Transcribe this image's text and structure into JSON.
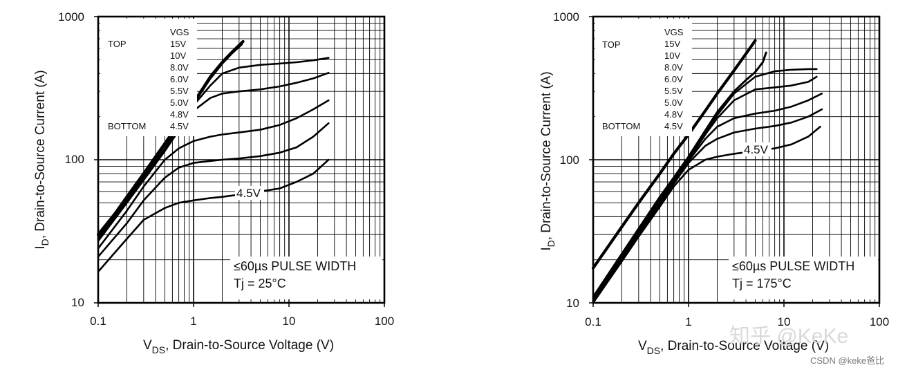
{
  "chart_data": [
    {
      "type": "line",
      "scale": "log-log",
      "xlim": [
        0.1,
        100
      ],
      "ylim": [
        10,
        1000
      ],
      "grid": true,
      "x_ticks": [
        "0.1",
        "1",
        "10",
        "100"
      ],
      "y_ticks": [
        "10",
        "100",
        "1000"
      ],
      "xlabel_main": "V",
      "xlabel_sub": "DS",
      "xlabel_rest": ", Drain-to-Source Voltage (V)",
      "ylabel_main": "I",
      "ylabel_sub": "D",
      "ylabel_rest": ", Drain-to-Source Current (A)",
      "legend": {
        "header": "VGS",
        "top_label": "TOP",
        "bottom_label": "BOTTOM",
        "entries": [
          "15V",
          "10V",
          "8.0V",
          "6.0V",
          "5.5V",
          "5.0V",
          "4.8V",
          "4.5V"
        ]
      },
      "annotation_line1": "≤60µs PULSE WIDTH",
      "annotation_line2": "Tj = 25°C",
      "curve_label": "4.5V",
      "series": [
        {
          "x": [
            0.1,
            0.15,
            0.2,
            0.3,
            0.5,
            0.7,
            1,
            1.5,
            2,
            2.5,
            3,
            3.3
          ],
          "y": [
            30,
            42,
            55,
            80,
            130,
            180,
            250,
            380,
            480,
            560,
            630,
            670
          ]
        },
        {
          "x": [
            0.1,
            0.15,
            0.2,
            0.3,
            0.5,
            0.7,
            1,
            1.5,
            2,
            2.5,
            3.2
          ],
          "y": [
            29,
            41,
            53,
            78,
            127,
            175,
            245,
            370,
            470,
            550,
            640
          ]
        },
        {
          "x": [
            0.1,
            0.2,
            0.3,
            0.5,
            0.7,
            1,
            1.5,
            2,
            3,
            5,
            8,
            12,
            18,
            26
          ],
          "y": [
            28,
            52,
            75,
            120,
            170,
            240,
            330,
            400,
            440,
            460,
            470,
            480,
            495,
            515
          ]
        },
        {
          "x": [
            0.1,
            0.2,
            0.3,
            0.5,
            0.7,
            1,
            1.5,
            2,
            3,
            5,
            8,
            12,
            18,
            26
          ],
          "y": [
            27,
            50,
            72,
            115,
            160,
            220,
            270,
            290,
            300,
            310,
            325,
            345,
            370,
            405
          ]
        },
        {
          "x": [
            0.1,
            0.2,
            0.3,
            0.5,
            0.7,
            1,
            1.5,
            2,
            3,
            5,
            8,
            12,
            18,
            26
          ],
          "y": [
            24,
            44,
            65,
            100,
            120,
            135,
            145,
            150,
            155,
            162,
            175,
            195,
            225,
            260
          ]
        },
        {
          "x": [
            0.1,
            0.2,
            0.3,
            0.5,
            0.7,
            1,
            1.5,
            2,
            3,
            5,
            8,
            12,
            18,
            26
          ],
          "y": [
            21,
            36,
            52,
            75,
            88,
            95,
            98,
            100,
            102,
            106,
            112,
            122,
            145,
            180
          ]
        },
        {
          "x": [
            0.1,
            0.2,
            0.3,
            0.5,
            0.7,
            1,
            1.5,
            2,
            3,
            5,
            8,
            12,
            18,
            26
          ],
          "y": [
            16.5,
            28,
            38,
            46,
            50,
            52,
            54,
            55,
            57,
            60,
            63,
            70,
            80,
            100
          ]
        }
      ]
    },
    {
      "type": "line",
      "scale": "log-log",
      "xlim": [
        0.1,
        100
      ],
      "ylim": [
        10,
        1000
      ],
      "grid": true,
      "x_ticks": [
        "0.1",
        "1",
        "10",
        "100"
      ],
      "y_ticks": [
        "10",
        "100",
        "1000"
      ],
      "xlabel_main": "V",
      "xlabel_sub": "DS",
      "xlabel_rest": ", Drain-to-Source Voltage (V)",
      "ylabel_main": "I",
      "ylabel_sub": "D",
      "ylabel_rest": ", Drain-to-Source Current (A)",
      "legend": {
        "header": "VGS",
        "top_label": "TOP",
        "bottom_label": "BOTTOM",
        "entries": [
          "15V",
          "10V",
          "8.0V",
          "6.0V",
          "5.5V",
          "5.0V",
          "4.8V",
          "4.5V"
        ]
      },
      "annotation_line1": "≤60µs PULSE WIDTH",
      "annotation_line2": "Tj = 175°C",
      "curve_label": "4.5V",
      "series": [
        {
          "x": [
            0.1,
            0.2,
            0.3,
            0.5,
            0.7,
            1,
            1.5,
            2,
            3,
            4,
            5
          ],
          "y": [
            17.5,
            34,
            50,
            80,
            110,
            150,
            220,
            290,
            420,
            550,
            680
          ]
        },
        {
          "x": [
            0.1,
            0.2,
            0.3,
            0.5,
            0.7,
            1,
            1.5,
            2,
            3,
            4,
            5,
            6,
            6.5
          ],
          "y": [
            11,
            22,
            33,
            55,
            75,
            105,
            160,
            215,
            300,
            360,
            410,
            480,
            560
          ]
        },
        {
          "x": [
            0.1,
            0.2,
            0.3,
            0.5,
            0.7,
            1,
            1.5,
            2,
            3,
            5,
            8,
            12,
            18,
            22
          ],
          "y": [
            10.8,
            21.5,
            32,
            53,
            73,
            102,
            155,
            205,
            290,
            380,
            415,
            425,
            430,
            430
          ]
        },
        {
          "x": [
            0.1,
            0.2,
            0.3,
            0.5,
            0.7,
            1,
            1.5,
            2,
            3,
            5,
            8,
            12,
            18,
            22
          ],
          "y": [
            10.6,
            21,
            31,
            51,
            71,
            100,
            150,
            195,
            260,
            310,
            320,
            330,
            350,
            380
          ]
        },
        {
          "x": [
            0.1,
            0.2,
            0.3,
            0.5,
            0.7,
            1,
            1.5,
            2,
            3,
            5,
            8,
            12,
            18,
            25
          ],
          "y": [
            10.4,
            20.5,
            30,
            50,
            70,
            98,
            140,
            170,
            195,
            210,
            220,
            235,
            260,
            290
          ]
        },
        {
          "x": [
            0.1,
            0.2,
            0.3,
            0.5,
            0.7,
            1,
            1.5,
            2,
            3,
            5,
            8,
            12,
            18,
            25
          ],
          "y": [
            10.2,
            20,
            29.5,
            49,
            68,
            95,
            125,
            140,
            155,
            165,
            172,
            182,
            200,
            225
          ]
        },
        {
          "x": [
            0.1,
            0.2,
            0.3,
            0.5,
            0.7,
            1,
            1.5,
            2,
            3,
            5,
            8,
            12,
            18,
            24
          ],
          "y": [
            10,
            19.5,
            29,
            47,
            65,
            85,
            100,
            105,
            110,
            115,
            120,
            128,
            145,
            170
          ]
        }
      ]
    }
  ],
  "watermark": "知乎 @KeKe",
  "credit": "CSDN @keke爸比"
}
